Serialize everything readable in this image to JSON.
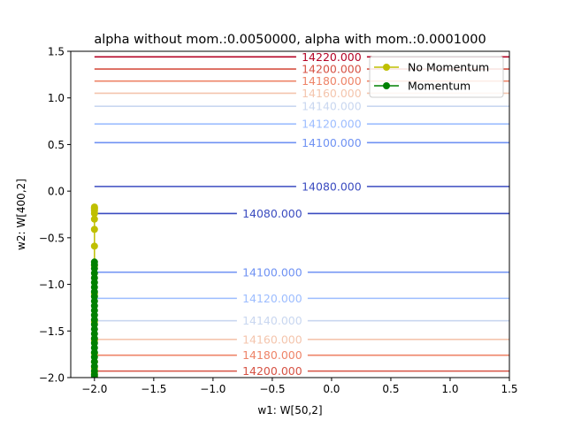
{
  "chart_data": {
    "type": "contour",
    "title": "alpha without mom.:0.0050000, alpha with mom.:0.0001000",
    "xlabel": "w1: W[50,2]",
    "ylabel": "w2: W[400,2]",
    "xlim": [
      -2.2,
      1.5
    ],
    "ylim": [
      -2.0,
      1.5
    ],
    "x_ticks": [
      -2.0,
      -1.5,
      -1.0,
      -0.5,
      0.0,
      0.5,
      1.0,
      1.5
    ],
    "x_tick_labels": [
      "−2.0",
      "−1.5",
      "−1.0",
      "−0.5",
      "0.0",
      "0.5",
      "1.0",
      "1.5"
    ],
    "y_ticks": [
      1.5,
      1.0,
      0.5,
      0.0,
      -0.5,
      -1.0,
      -1.5,
      -2.0
    ],
    "y_tick_labels": [
      "1.5",
      "1.0",
      "0.5",
      "0.0",
      "−0.5",
      "−1.0",
      "−1.5",
      "−2.0"
    ],
    "grid": false,
    "legend_position": "top-right",
    "contour_x_range": [
      -2.0,
      1.5
    ],
    "contours": [
      {
        "level": 14220,
        "label": "14220.000",
        "y": 1.44,
        "label_x": 0.0,
        "color": "#b40426"
      },
      {
        "level": 14200,
        "label": "14200.000",
        "y": 1.31,
        "label_x": 0.0,
        "color": "#d65244"
      },
      {
        "level": 14180,
        "label": "14180.000",
        "y": 1.18,
        "label_x": 0.0,
        "color": "#ee8468"
      },
      {
        "level": 14160,
        "label": "14160.000",
        "y": 1.05,
        "label_x": 0.0,
        "color": "#f4c5ad"
      },
      {
        "level": 14140,
        "label": "14140.000",
        "y": 0.91,
        "label_x": 0.0,
        "color": "#c9d7f0"
      },
      {
        "level": 14120,
        "label": "14120.000",
        "y": 0.72,
        "label_x": 0.0,
        "color": "#9dbdff"
      },
      {
        "level": 14100,
        "label": "14100.000",
        "y": 0.52,
        "label_x": 0.0,
        "color": "#6f92f3"
      },
      {
        "level": 14080,
        "label": "14080.000",
        "y": 0.05,
        "label_x": 0.0,
        "color": "#3b4cc0"
      },
      {
        "level": 14080,
        "label": "14080.000",
        "y": -0.24,
        "label_x": -0.5,
        "color": "#3b4cc0"
      },
      {
        "level": 14100,
        "label": "14100.000",
        "y": -0.87,
        "label_x": -0.5,
        "color": "#6f92f3"
      },
      {
        "level": 14120,
        "label": "14120.000",
        "y": -1.15,
        "label_x": -0.5,
        "color": "#9dbdff"
      },
      {
        "level": 14140,
        "label": "14140.000",
        "y": -1.39,
        "label_x": -0.5,
        "color": "#c9d7f0"
      },
      {
        "level": 14160,
        "label": "14160.000",
        "y": -1.59,
        "label_x": -0.5,
        "color": "#f4c5ad"
      },
      {
        "level": 14180,
        "label": "14180.000",
        "y": -1.76,
        "label_x": -0.5,
        "color": "#ee8468"
      },
      {
        "level": 14200,
        "label": "14200.000",
        "y": -1.93,
        "label_x": -0.5,
        "color": "#d65244"
      }
    ],
    "series": [
      {
        "name": "No Momentum",
        "color": "#bfbf00",
        "marker": "circle",
        "points": [
          [
            -2.0,
            -2.0
          ],
          [
            -2.0,
            -1.98
          ],
          [
            -2.0,
            -1.95
          ],
          [
            -2.0,
            -1.9
          ],
          [
            -2.0,
            -1.83
          ],
          [
            -2.0,
            -1.74
          ],
          [
            -2.0,
            -1.6
          ],
          [
            -2.0,
            -1.4
          ],
          [
            -2.0,
            -1.1
          ],
          [
            -2.0,
            -0.8
          ],
          [
            -2.0,
            -0.59
          ],
          [
            -2.0,
            -0.41
          ],
          [
            -2.0,
            -0.3
          ],
          [
            -2.0,
            -0.24
          ],
          [
            -2.0,
            -0.21
          ],
          [
            -2.0,
            -0.19
          ],
          [
            -2.0,
            -0.18
          ],
          [
            -2.0,
            -0.17
          ]
        ]
      },
      {
        "name": "Momentum",
        "color": "#008000",
        "marker": "circle",
        "points": [
          [
            -2.0,
            -2.0
          ],
          [
            -2.0,
            -1.97
          ],
          [
            -2.0,
            -1.93
          ],
          [
            -2.0,
            -1.88
          ],
          [
            -2.0,
            -1.83
          ],
          [
            -2.0,
            -1.78
          ],
          [
            -2.0,
            -1.73
          ],
          [
            -2.0,
            -1.68
          ],
          [
            -2.0,
            -1.63
          ],
          [
            -2.0,
            -1.58
          ],
          [
            -2.0,
            -1.53
          ],
          [
            -2.0,
            -1.48
          ],
          [
            -2.0,
            -1.43
          ],
          [
            -2.0,
            -1.38
          ],
          [
            -2.0,
            -1.33
          ],
          [
            -2.0,
            -1.28
          ],
          [
            -2.0,
            -1.23
          ],
          [
            -2.0,
            -1.18
          ],
          [
            -2.0,
            -1.13
          ],
          [
            -2.0,
            -1.08
          ],
          [
            -2.0,
            -1.03
          ],
          [
            -2.0,
            -0.98
          ],
          [
            -2.0,
            -0.93
          ],
          [
            -2.0,
            -0.88
          ],
          [
            -2.0,
            -0.83
          ],
          [
            -2.0,
            -0.79
          ],
          [
            -2.0,
            -0.76
          ]
        ]
      }
    ]
  }
}
